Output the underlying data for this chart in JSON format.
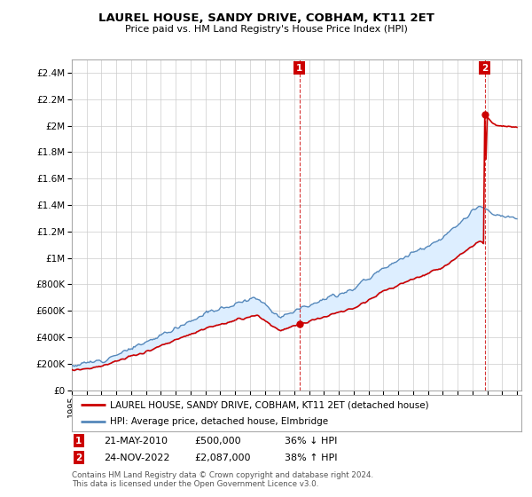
{
  "title": "LAUREL HOUSE, SANDY DRIVE, COBHAM, KT11 2ET",
  "subtitle": "Price paid vs. HM Land Registry's House Price Index (HPI)",
  "sale1_date": "21-MAY-2010",
  "sale1_price": 500000,
  "sale1_hpi_pct": "36% ↓ HPI",
  "sale2_date": "24-NOV-2022",
  "sale2_price": 2087000,
  "sale2_hpi_pct": "38% ↑ HPI",
  "legend_house": "LAUREL HOUSE, SANDY DRIVE, COBHAM, KT11 2ET (detached house)",
  "legend_hpi": "HPI: Average price, detached house, Elmbridge",
  "footnote": "Contains HM Land Registry data © Crown copyright and database right 2024.\nThis data is licensed under the Open Government Licence v3.0.",
  "house_color": "#cc0000",
  "hpi_color": "#5588bb",
  "fill_color": "#ddeeff",
  "ylim_max": 2500000,
  "background_color": "#ffffff",
  "grid_color": "#cccccc"
}
